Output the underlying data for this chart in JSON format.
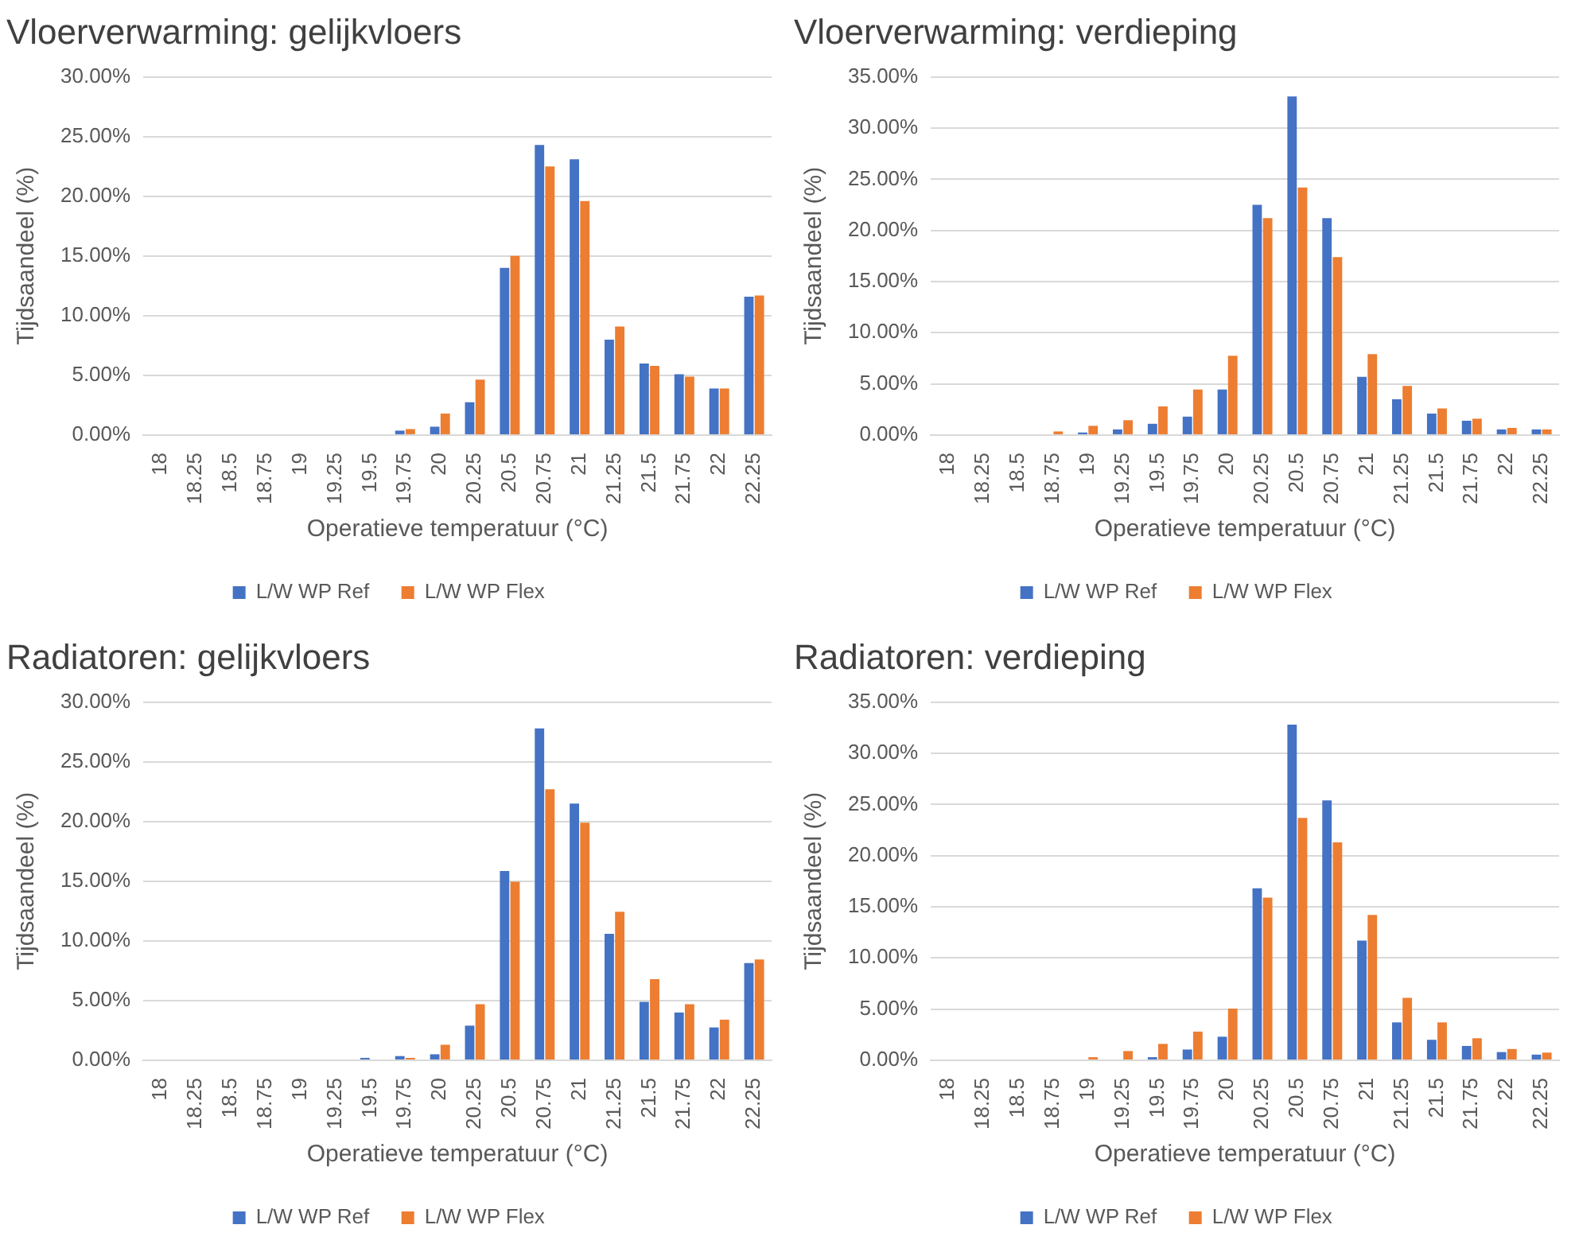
{
  "chart_data": [
    {
      "type": "bar",
      "title": "Vloerverwarming: gelijkvloers",
      "xlabel": "Operatieve temperatuur (°C)",
      "ylabel": "Tijdsaandeel (%)",
      "categories": [
        "18",
        "18.25",
        "18.5",
        "18.75",
        "19",
        "19.25",
        "19.5",
        "19.75",
        "20",
        "20.25",
        "20.5",
        "20.75",
        "21",
        "21.25",
        "21.5",
        "21.75",
        "22",
        "22.25"
      ],
      "series": [
        {
          "name": "L/W WP Ref",
          "color": "#4472c4",
          "values": [
            0,
            0,
            0,
            0,
            0,
            0,
            0,
            0.37,
            0.7,
            2.75,
            14.0,
            24.3,
            23.1,
            8.0,
            6.0,
            5.1,
            3.9,
            11.6
          ]
        },
        {
          "name": "L/W WP Flex",
          "color": "#ed7d31",
          "values": [
            0,
            0,
            0,
            0,
            0,
            0,
            0,
            0.5,
            1.8,
            4.65,
            15.0,
            22.5,
            19.6,
            9.1,
            5.8,
            4.9,
            3.9,
            11.7
          ]
        }
      ],
      "ylim": [
        0,
        30
      ],
      "yticks": [
        {
          "value": 0,
          "label": "0.00%"
        },
        {
          "value": 5,
          "label": "5.00%"
        },
        {
          "value": 10,
          "label": "10.00%"
        },
        {
          "value": 15,
          "label": "15.00%"
        },
        {
          "value": 20,
          "label": "20.00%"
        },
        {
          "value": 25,
          "label": "25.00%"
        },
        {
          "value": 30,
          "label": "30.00%"
        }
      ],
      "grid": "y",
      "legend": "bottom"
    },
    {
      "type": "bar",
      "title": "Vloerverwarming: verdieping",
      "xlabel": "Operatieve temperatuur (°C)",
      "ylabel": "Tijdsaandeel (%)",
      "categories": [
        "18",
        "18.25",
        "18.5",
        "18.75",
        "19",
        "19.25",
        "19.5",
        "19.75",
        "20",
        "20.25",
        "20.5",
        "20.75",
        "21",
        "21.25",
        "21.5",
        "21.75",
        "22",
        "22.25"
      ],
      "series": [
        {
          "name": "L/W WP Ref",
          "color": "#4472c4",
          "values": [
            0,
            0,
            0,
            0,
            0.25,
            0.55,
            1.1,
            1.8,
            4.45,
            22.5,
            33.1,
            21.2,
            5.7,
            3.5,
            2.1,
            1.4,
            0.55,
            0.55
          ]
        },
        {
          "name": "L/W WP Flex",
          "color": "#ed7d31",
          "values": [
            0,
            0,
            0,
            0.35,
            0.9,
            1.45,
            2.8,
            4.45,
            7.75,
            21.2,
            24.2,
            17.4,
            7.9,
            4.8,
            2.6,
            1.6,
            0.7,
            0.55
          ]
        }
      ],
      "ylim": [
        0,
        35
      ],
      "yticks": [
        {
          "value": 0,
          "label": "0.00%"
        },
        {
          "value": 5,
          "label": "5.00%"
        },
        {
          "value": 10,
          "label": "10.00%"
        },
        {
          "value": 15,
          "label": "15.00%"
        },
        {
          "value": 20,
          "label": "20.00%"
        },
        {
          "value": 25,
          "label": "25.00%"
        },
        {
          "value": 30,
          "label": "30.00%"
        },
        {
          "value": 35,
          "label": "35.00%"
        }
      ],
      "grid": "y",
      "legend": "bottom"
    },
    {
      "type": "bar",
      "title": "Radiatoren: gelijkvloers",
      "xlabel": "Operatieve temperatuur (°C)",
      "ylabel": "Tijdsaandeel (%)",
      "categories": [
        "18",
        "18.25",
        "18.5",
        "18.75",
        "19",
        "19.25",
        "19.5",
        "19.75",
        "20",
        "20.25",
        "20.5",
        "20.75",
        "21",
        "21.25",
        "21.5",
        "21.75",
        "22",
        "22.25"
      ],
      "series": [
        {
          "name": "L/W WP Ref",
          "color": "#4472c4",
          "values": [
            0,
            0,
            0,
            0,
            0,
            0,
            0.2,
            0.35,
            0.5,
            2.9,
            15.85,
            27.8,
            21.5,
            10.6,
            4.9,
            4.0,
            2.75,
            8.15
          ]
        },
        {
          "name": "L/W WP Flex",
          "color": "#ed7d31",
          "values": [
            0,
            0,
            0,
            0,
            0,
            0,
            0,
            0.2,
            1.3,
            4.7,
            14.95,
            22.7,
            19.9,
            12.45,
            6.8,
            4.7,
            3.4,
            8.45
          ]
        }
      ],
      "ylim": [
        0,
        30
      ],
      "yticks": [
        {
          "value": 0,
          "label": "0.00%"
        },
        {
          "value": 5,
          "label": "5.00%"
        },
        {
          "value": 10,
          "label": "10.00%"
        },
        {
          "value": 15,
          "label": "15.00%"
        },
        {
          "value": 20,
          "label": "20.00%"
        },
        {
          "value": 25,
          "label": "25.00%"
        },
        {
          "value": 30,
          "label": "30.00%"
        }
      ],
      "grid": "y",
      "legend": "bottom"
    },
    {
      "type": "bar",
      "title": "Radiatoren: verdieping",
      "xlabel": "Operatieve temperatuur (°C)",
      "ylabel": "Tijdsaandeel (%)",
      "categories": [
        "18",
        "18.25",
        "18.5",
        "18.75",
        "19",
        "19.25",
        "19.5",
        "19.75",
        "20",
        "20.25",
        "20.5",
        "20.75",
        "21",
        "21.25",
        "21.5",
        "21.75",
        "22",
        "22.25"
      ],
      "series": [
        {
          "name": "L/W WP Ref",
          "color": "#4472c4",
          "values": [
            0,
            0,
            0,
            0,
            0,
            0,
            0.3,
            1.05,
            2.3,
            16.8,
            32.8,
            25.4,
            11.7,
            3.7,
            2.0,
            1.4,
            0.8,
            0.55
          ]
        },
        {
          "name": "L/W WP Flex",
          "color": "#ed7d31",
          "values": [
            0,
            0,
            0,
            0,
            0.3,
            0.9,
            1.6,
            2.8,
            5.05,
            15.9,
            23.7,
            21.3,
            14.2,
            6.1,
            3.7,
            2.15,
            1.1,
            0.75
          ]
        }
      ],
      "ylim": [
        0,
        35
      ],
      "yticks": [
        {
          "value": 0,
          "label": "0.00%"
        },
        {
          "value": 5,
          "label": "5.00%"
        },
        {
          "value": 10,
          "label": "10.00%"
        },
        {
          "value": 15,
          "label": "15.00%"
        },
        {
          "value": 20,
          "label": "20.00%"
        },
        {
          "value": 25,
          "label": "25.00%"
        },
        {
          "value": 30,
          "label": "30.00%"
        },
        {
          "value": 35,
          "label": "35.00%"
        }
      ],
      "grid": "y",
      "legend": "bottom"
    }
  ]
}
